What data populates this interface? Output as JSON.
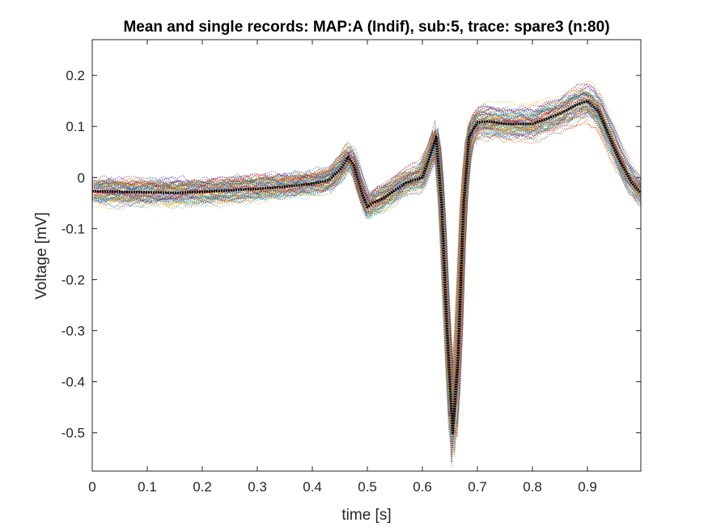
{
  "chart_data": {
    "type": "line",
    "title": "Mean and single records: MAP:A (Indif), sub:5, trace: spare3 (n:80)",
    "xlabel": "time [s]",
    "ylabel": "Voltage [mV]",
    "xlim": [
      0,
      0.997
    ],
    "ylim": [
      -0.575,
      0.27
    ],
    "x_ticks": [
      0,
      0.1,
      0.2,
      0.3,
      0.4,
      0.5,
      0.6,
      0.7,
      0.8,
      0.9
    ],
    "x_tick_labels": [
      "0",
      "0.1",
      "0.2",
      "0.3",
      "0.4",
      "0.5",
      "0.6",
      "0.7",
      "0.8",
      "0.9"
    ],
    "y_ticks": [
      0.2,
      0.1,
      0,
      -0.1,
      -0.2,
      -0.3,
      -0.4,
      -0.5
    ],
    "y_tick_labels": [
      "0.2",
      "0.1",
      "0",
      "-0.1",
      "-0.2",
      "-0.3",
      "-0.4",
      "-0.5"
    ],
    "grid": false,
    "legend": "none",
    "single_records": {
      "count": 80,
      "style": "dotted",
      "colors": [
        "#0072BD",
        "#D95319",
        "#EDB120",
        "#7E2F8E",
        "#77AC30",
        "#4DBEEE",
        "#A2142F"
      ]
    },
    "series": [
      {
        "color": "#000000",
        "style": "solid-thick",
        "x": [
          0,
          0.05,
          0.1,
          0.15,
          0.2,
          0.25,
          0.3,
          0.35,
          0.4,
          0.43,
          0.45,
          0.465,
          0.475,
          0.49,
          0.5,
          0.51,
          0.53,
          0.55,
          0.57,
          0.6,
          0.615,
          0.625,
          0.635,
          0.645,
          0.655,
          0.665,
          0.675,
          0.685,
          0.7,
          0.72,
          0.75,
          0.8,
          0.85,
          0.88,
          0.9,
          0.92,
          0.94,
          0.96,
          0.98,
          0.997
        ],
        "y": [
          -0.027,
          -0.028,
          -0.029,
          -0.03,
          -0.028,
          -0.025,
          -0.022,
          -0.018,
          -0.012,
          -0.005,
          0.015,
          0.04,
          0.025,
          -0.03,
          -0.058,
          -0.05,
          -0.04,
          -0.025,
          -0.01,
          0.0,
          0.045,
          0.08,
          -0.05,
          -0.3,
          -0.5,
          -0.35,
          -0.05,
          0.08,
          0.108,
          0.11,
          0.105,
          0.105,
          0.125,
          0.142,
          0.15,
          0.13,
          0.08,
          0.03,
          -0.01,
          -0.03
        ]
      }
    ]
  }
}
